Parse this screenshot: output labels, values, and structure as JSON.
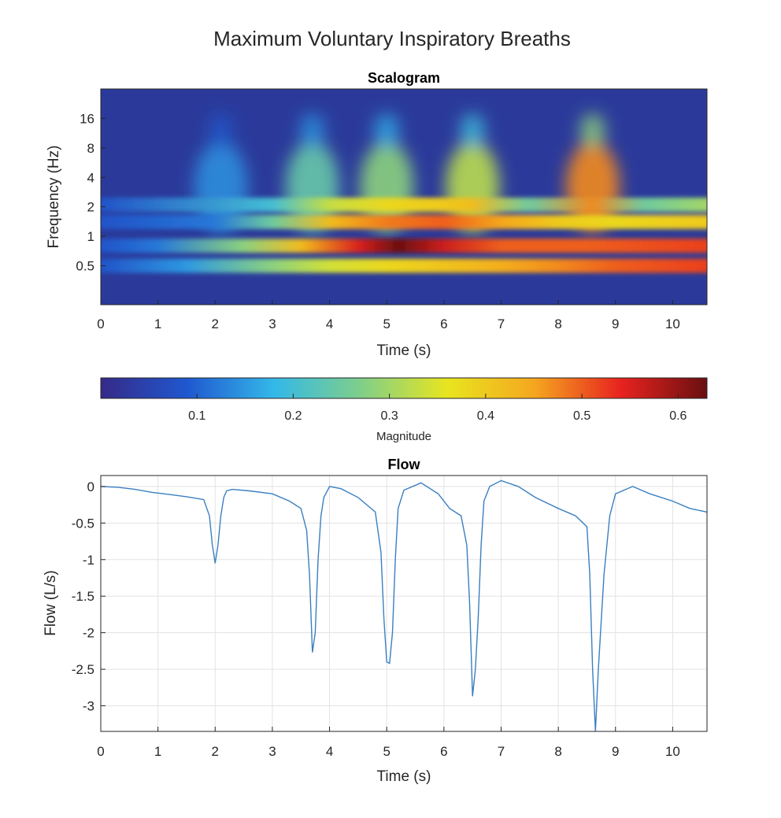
{
  "figure": {
    "suptitle": "Maximum Voluntary Inspiratory Breaths"
  },
  "chart_data": [
    {
      "type": "heatmap",
      "title": "Scalogram",
      "xlabel": "Time (s)",
      "ylabel": "Frequency (Hz)",
      "xlim": [
        0,
        10.6
      ],
      "ylim_hz": [
        0.2,
        32
      ],
      "y_scale": "log2",
      "x_ticks": [
        0,
        1,
        2,
        3,
        4,
        5,
        6,
        7,
        8,
        9,
        10
      ],
      "y_ticks": [
        0.5,
        1,
        2,
        4,
        8,
        16
      ],
      "colormap": "parula",
      "colorbar": {
        "label": "Magnitude",
        "placement": "bottom",
        "range": [
          0,
          0.63
        ],
        "ticks": [
          0.1,
          0.2,
          0.3,
          0.4,
          0.5,
          0.6
        ],
        "colors": [
          "#352a87",
          "#2058d0",
          "#33b8e8",
          "#7fcf8a",
          "#e8e51f",
          "#f5a71f",
          "#e8231f",
          "#6a0f10"
        ]
      },
      "background_color": "#2b3a9a",
      "bands": [
        {
          "freq_hz": 0.5,
          "segments": [
            [
              1.5,
              0.15
            ],
            [
              3.0,
              0.28
            ],
            [
              4.0,
              0.34
            ],
            [
              5.0,
              0.38
            ],
            [
              6.0,
              0.41
            ],
            [
              7.0,
              0.44
            ],
            [
              8.0,
              0.47
            ],
            [
              9.0,
              0.5
            ],
            [
              10.6,
              0.52
            ]
          ]
        },
        {
          "freq_hz": 0.8,
          "segments": [
            [
              1.0,
              0.12
            ],
            [
              2.5,
              0.28
            ],
            [
              3.5,
              0.42
            ],
            [
              4.5,
              0.55
            ],
            [
              5.2,
              0.63
            ],
            [
              6.0,
              0.56
            ],
            [
              7.0,
              0.5
            ],
            [
              8.5,
              0.5
            ],
            [
              10.6,
              0.52
            ]
          ]
        },
        {
          "freq_hz": 1.4,
          "segments": [
            [
              2.0,
              0.12
            ],
            [
              3.0,
              0.25
            ],
            [
              4.0,
              0.42
            ],
            [
              5.0,
              0.48
            ],
            [
              6.0,
              0.5
            ],
            [
              7.0,
              0.45
            ],
            [
              8.0,
              0.4
            ],
            [
              9.0,
              0.38
            ],
            [
              10.6,
              0.4
            ]
          ]
        },
        {
          "freq_hz": 2.1,
          "segments": [
            [
              3.0,
              0.2
            ],
            [
              4.0,
              0.33
            ],
            [
              5.0,
              0.38
            ],
            [
              6.0,
              0.4
            ],
            [
              6.5,
              0.42
            ],
            [
              7.5,
              0.25
            ],
            [
              8.6,
              0.47
            ],
            [
              9.5,
              0.25
            ],
            [
              10.6,
              0.3
            ]
          ]
        }
      ],
      "lobes": [
        {
          "t": 2.1,
          "mag": 0.14
        },
        {
          "t": 3.7,
          "mag": 0.24
        },
        {
          "t": 5.0,
          "mag": 0.28
        },
        {
          "t": 6.5,
          "mag": 0.32
        },
        {
          "t": 8.6,
          "mag": 0.47
        }
      ]
    },
    {
      "type": "line",
      "title": "Flow",
      "xlabel": "Time (s)",
      "ylabel": "Flow (L/s)",
      "xlim": [
        0,
        10.6
      ],
      "ylim": [
        -3.35,
        0.15
      ],
      "x_ticks": [
        0,
        1,
        2,
        3,
        4,
        5,
        6,
        7,
        8,
        9,
        10
      ],
      "y_ticks": [
        0,
        -0.5,
        -1,
        -1.5,
        -2,
        -2.5,
        -3
      ],
      "y_tick_labels": [
        "0",
        "-0.5",
        "-1",
        "-1.5",
        "-2",
        "-2.5",
        "-3"
      ],
      "grid": true,
      "line_color": "#3a7fc2",
      "x": [
        0,
        0.3,
        0.6,
        0.9,
        1.2,
        1.5,
        1.8,
        1.9,
        1.95,
        2.0,
        2.05,
        2.1,
        2.15,
        2.2,
        2.3,
        2.6,
        3.0,
        3.3,
        3.5,
        3.6,
        3.65,
        3.7,
        3.75,
        3.8,
        3.85,
        3.9,
        4.0,
        4.2,
        4.5,
        4.8,
        4.9,
        4.95,
        5.0,
        5.05,
        5.1,
        5.15,
        5.2,
        5.3,
        5.6,
        5.9,
        6.1,
        6.3,
        6.4,
        6.45,
        6.5,
        6.55,
        6.6,
        6.65,
        6.7,
        6.8,
        7.0,
        7.3,
        7.6,
        8.0,
        8.3,
        8.5,
        8.55,
        8.6,
        8.65,
        8.7,
        8.8,
        8.9,
        9.0,
        9.3,
        9.6,
        10.0,
        10.3,
        10.6
      ],
      "y": [
        0.0,
        -0.01,
        -0.04,
        -0.08,
        -0.11,
        -0.14,
        -0.18,
        -0.4,
        -0.8,
        -1.05,
        -0.8,
        -0.4,
        -0.15,
        -0.06,
        -0.04,
        -0.06,
        -0.1,
        -0.2,
        -0.3,
        -0.6,
        -1.2,
        -2.27,
        -2.0,
        -1.0,
        -0.4,
        -0.15,
        0.0,
        -0.03,
        -0.15,
        -0.35,
        -0.9,
        -1.8,
        -2.4,
        -2.42,
        -2.0,
        -1.0,
        -0.3,
        -0.05,
        0.05,
        -0.1,
        -0.3,
        -0.4,
        -0.8,
        -1.6,
        -2.87,
        -2.5,
        -1.8,
        -0.8,
        -0.2,
        0.0,
        0.08,
        0.0,
        -0.15,
        -0.3,
        -0.4,
        -0.55,
        -1.2,
        -2.5,
        -3.35,
        -2.5,
        -1.2,
        -0.4,
        -0.1,
        0.0,
        -0.1,
        -0.2,
        -0.3,
        -0.35
      ]
    }
  ]
}
